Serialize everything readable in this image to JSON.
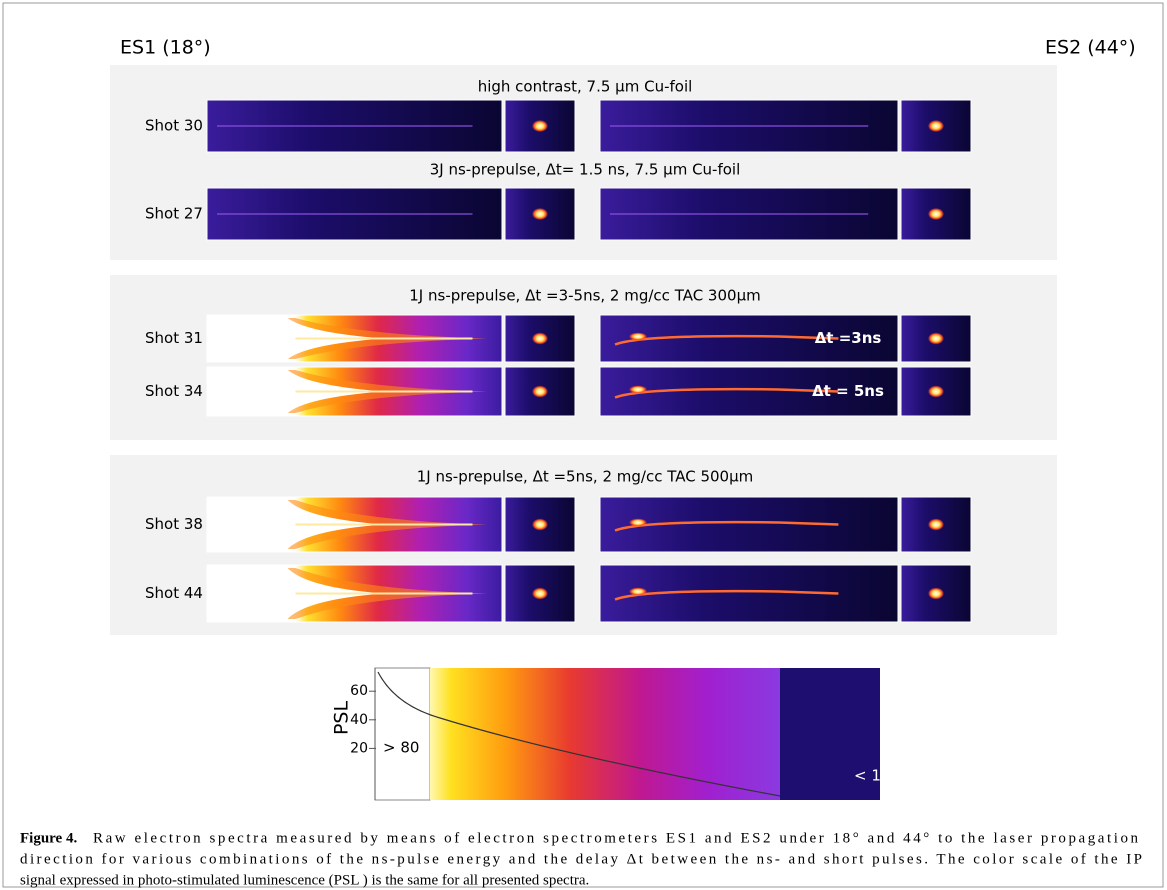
{
  "figure": {
    "left_label": "ES1 (18°)",
    "right_label": "ES2 (44°)",
    "panels": [
      {
        "sections": [
          {
            "title": "high contrast, 7.5 µm Cu-foil",
            "shots": [
              {
                "label": "Shot 30"
              }
            ]
          },
          {
            "title": "3J  ns-prepulse, Δt= 1.5 ns, 7.5 µm Cu-foil",
            "shots": [
              {
                "label": "Shot 27"
              }
            ]
          }
        ]
      },
      {
        "sections": [
          {
            "title": "1J ns-prepulse,  Δt =3-5ns,  2 mg/cc TAC 300µm",
            "shots": [
              {
                "label": "Shot 31",
                "note": "Δt =3ns"
              },
              {
                "label": "Shot 34",
                "note": "Δt = 5ns"
              }
            ]
          }
        ]
      },
      {
        "sections": [
          {
            "title": "1J ns-prepulse,  Δt =5ns,  2 mg/cc  TAC 500µm",
            "shots": [
              {
                "label": "Shot 38"
              },
              {
                "label": "Shot 44"
              }
            ]
          }
        ]
      }
    ],
    "colorbar": {
      "axis_label": "PSL",
      "ticks": [
        60,
        40,
        20
      ],
      "low_label": "> 80",
      "high_label": "< 1"
    },
    "caption": {
      "label": "Figure 4.",
      "lines": [
        "Raw electron spectra measured by means of electron spectrometers ES1 and ES2 under 18° and 44° to the laser propagation",
        "direction for various combinations of the ns-pulse energy and the delay Δt between the ns- and short pulses. The color scale of the IP",
        "signal expressed in photo-stimulated luminescence (PSL ) is the same for all presented spectra."
      ]
    }
  }
}
